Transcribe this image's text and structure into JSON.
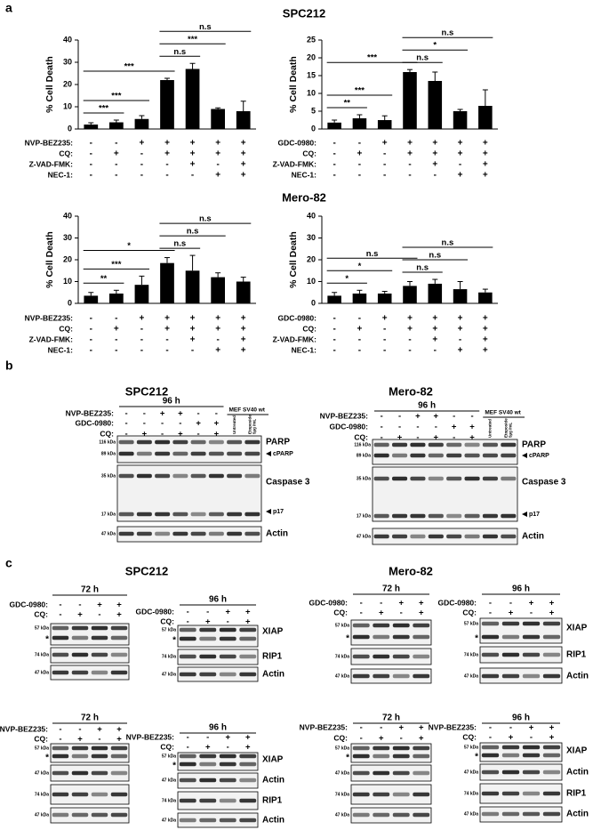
{
  "panels": [
    {
      "label": "a",
      "titles": [
        "SPC212",
        "Mero-82"
      ]
    },
    {
      "label": "b",
      "titles": [
        "SPC212",
        "Mero-82"
      ]
    },
    {
      "label": "c",
      "titles": [
        "SPC212",
        "Mero-82"
      ]
    }
  ],
  "chart_data": [
    {
      "type": "bar",
      "ylabel": "% Cell Death",
      "color": "#000000",
      "values": [
        2,
        3,
        4.5,
        22,
        27,
        9,
        8
      ],
      "errors": [
        0.8,
        1,
        1.5,
        0.8,
        2.5,
        0.5,
        4.5
      ],
      "ylim": [
        0,
        40
      ],
      "yticks": [
        0,
        10,
        20,
        30,
        40
      ],
      "conditions": [
        {
          "name": "NVP-BEZ235:",
          "signs": [
            "-",
            "-",
            "+",
            "+",
            "+",
            "+",
            "+"
          ]
        },
        {
          "name": "CQ:",
          "signs": [
            "-",
            "+",
            "-",
            "+",
            "+",
            "+",
            "+"
          ]
        },
        {
          "name": "Z-VAD-FMK:",
          "signs": [
            "-",
            "-",
            "-",
            "-",
            "+",
            "-",
            "+"
          ]
        },
        {
          "name": "NEC-1:",
          "signs": [
            "-",
            "-",
            "-",
            "-",
            "-",
            "+",
            "+"
          ]
        }
      ],
      "comparisons": [
        {
          "bars": [
            0,
            1
          ],
          "label": "***"
        },
        {
          "bars": [
            0,
            2
          ],
          "label": "***"
        },
        {
          "bars": [
            0,
            3
          ],
          "label": "***"
        },
        {
          "bars": [
            3,
            4
          ],
          "label": "n.s"
        },
        {
          "bars": [
            3,
            5
          ],
          "label": "***"
        },
        {
          "bars": [
            3,
            6
          ],
          "label": "n.s"
        }
      ]
    },
    {
      "type": "bar",
      "ylabel": "% Cell Death",
      "color": "#000000",
      "values": [
        1.8,
        3,
        2.5,
        16,
        13.5,
        5,
        6.5
      ],
      "errors": [
        0.7,
        1,
        1.2,
        0.7,
        2.5,
        0.5,
        4.5
      ],
      "ylim": [
        0,
        25
      ],
      "yticks": [
        0,
        5,
        10,
        15,
        20,
        25
      ],
      "conditions": [
        {
          "name": "GDC-0980:",
          "signs": [
            "-",
            "-",
            "+",
            "+",
            "+",
            "+",
            "+"
          ]
        },
        {
          "name": "CQ:",
          "signs": [
            "-",
            "+",
            "-",
            "+",
            "+",
            "+",
            "+"
          ]
        },
        {
          "name": "Z-VAD-FMK:",
          "signs": [
            "-",
            "-",
            "-",
            "-",
            "+",
            "-",
            "+"
          ]
        },
        {
          "name": "NEC-1:",
          "signs": [
            "-",
            "-",
            "-",
            "-",
            "-",
            "+",
            "+"
          ]
        }
      ],
      "comparisons": [
        {
          "bars": [
            0,
            1
          ],
          "label": "**"
        },
        {
          "bars": [
            0,
            2
          ],
          "label": "***"
        },
        {
          "bars": [
            0,
            3
          ],
          "label": "***"
        },
        {
          "bars": [
            3,
            4
          ],
          "label": "n.s"
        },
        {
          "bars": [
            3,
            5
          ],
          "label": "*"
        },
        {
          "bars": [
            3,
            6
          ],
          "label": "n.s"
        }
      ]
    },
    {
      "type": "bar",
      "ylabel": "% Cell Death",
      "color": "#000000",
      "values": [
        3.5,
        4.5,
        8.5,
        18.5,
        15,
        12,
        10
      ],
      "errors": [
        1.5,
        1.5,
        4,
        2.5,
        7,
        2,
        2
      ],
      "ylim": [
        0,
        40
      ],
      "yticks": [
        0,
        10,
        20,
        30,
        40
      ],
      "conditions": [
        {
          "name": "NVP-BEZ235:",
          "signs": [
            "-",
            "-",
            "+",
            "+",
            "+",
            "+",
            "+"
          ]
        },
        {
          "name": "CQ:",
          "signs": [
            "-",
            "+",
            "-",
            "+",
            "+",
            "+",
            "+"
          ]
        },
        {
          "name": "Z-VAD-FMK:",
          "signs": [
            "-",
            "-",
            "-",
            "-",
            "+",
            "-",
            "+"
          ]
        },
        {
          "name": "NEC-1:",
          "signs": [
            "-",
            "-",
            "-",
            "-",
            "-",
            "+",
            "+"
          ]
        }
      ],
      "comparisons": [
        {
          "bars": [
            0,
            1
          ],
          "label": "**"
        },
        {
          "bars": [
            0,
            2
          ],
          "label": "***"
        },
        {
          "bars": [
            0,
            3
          ],
          "label": "*"
        },
        {
          "bars": [
            3,
            4
          ],
          "label": "n.s"
        },
        {
          "bars": [
            3,
            5
          ],
          "label": "n.s"
        },
        {
          "bars": [
            3,
            6
          ],
          "label": "n.s"
        }
      ]
    },
    {
      "type": "bar",
      "ylabel": "% Cell Death",
      "color": "#000000",
      "values": [
        3.5,
        4.5,
        4.5,
        8,
        9,
        6.5,
        5
      ],
      "errors": [
        1.5,
        1.5,
        1,
        2,
        2,
        3.5,
        1.5
      ],
      "ylim": [
        0,
        40
      ],
      "yticks": [
        0,
        10,
        20,
        30,
        40
      ],
      "conditions": [
        {
          "name": "GDC-0980:",
          "signs": [
            "-",
            "-",
            "+",
            "+",
            "+",
            "+",
            "+"
          ]
        },
        {
          "name": "CQ:",
          "signs": [
            "-",
            "+",
            "-",
            "+",
            "+",
            "+",
            "+"
          ]
        },
        {
          "name": "Z-VAD-FMK:",
          "signs": [
            "-",
            "-",
            "-",
            "-",
            "+",
            "-",
            "+"
          ]
        },
        {
          "name": "NEC-1:",
          "signs": [
            "-",
            "-",
            "-",
            "-",
            "-",
            "+",
            "+"
          ]
        }
      ],
      "comparisons": [
        {
          "bars": [
            0,
            1
          ],
          "label": "*"
        },
        {
          "bars": [
            0,
            2
          ],
          "label": "*"
        },
        {
          "bars": [
            0,
            3
          ],
          "label": "n.s"
        },
        {
          "bars": [
            3,
            4
          ],
          "label": "n.s"
        },
        {
          "bars": [
            3,
            5
          ],
          "label": "n.s"
        },
        {
          "bars": [
            3,
            6
          ],
          "label": "n.s"
        }
      ]
    }
  ],
  "blots": [
    {
      "time": "96 h",
      "conditions": [
        {
          "name": "NVP-BEZ235:",
          "signs": [
            "-",
            "-",
            "+",
            "+",
            "-",
            "-"
          ]
        },
        {
          "name": "GDC-0980:",
          "signs": [
            "-",
            "-",
            "-",
            "-",
            "+",
            "+"
          ]
        },
        {
          "name": "CQ:",
          "signs": [
            "-",
            "+",
            "-",
            "+",
            "-",
            "+"
          ]
        }
      ],
      "control_group": "MEF SV40 wt",
      "control_lanes": [
        [
          "Untreated"
        ],
        [
          "Etoposide",
          "5µg /mL"
        ]
      ],
      "boxes": [
        {
          "markers": [
            "116 kDa",
            "89 kDa"
          ],
          "labels": [
            "PARP",
            "cPARP"
          ]
        },
        {
          "markers": [
            "35 kDa",
            "17 kDa"
          ],
          "labels": [
            "Caspase 3",
            "p17"
          ]
        },
        {
          "markers": [
            "47 kDa"
          ],
          "labels": [
            "Actin"
          ]
        }
      ]
    },
    {
      "time": "96 h",
      "conditions": [
        {
          "name": "NVP-BEZ235:",
          "signs": [
            "-",
            "-",
            "+",
            "+",
            "-",
            "-"
          ]
        },
        {
          "name": "GDC-0980:",
          "signs": [
            "-",
            "-",
            "-",
            "-",
            "+",
            "+"
          ]
        },
        {
          "name": "CQ:",
          "signs": [
            "-",
            "+",
            "-",
            "+",
            "-",
            "+"
          ]
        }
      ],
      "control_group": "MEF SV40 wt",
      "control_lanes": [
        [
          "Untreated"
        ],
        [
          "Etoposide",
          "5µg /mL"
        ]
      ],
      "boxes": [
        {
          "markers": [
            "116 kDa",
            "89 kDa"
          ],
          "labels": [
            "PARP",
            "cPARP"
          ]
        },
        {
          "markers": [
            "35 kDa",
            "17 kDa"
          ],
          "labels": [
            "Caspase 3",
            "p17"
          ]
        },
        {
          "markers": [
            "47 kDa"
          ],
          "labels": [
            "Actin"
          ]
        }
      ]
    },
    {
      "time": "72 h",
      "conditions": [
        {
          "name": "GDC-0980:",
          "signs": [
            "-",
            "-",
            "+",
            "+"
          ]
        },
        {
          "name": "CQ:",
          "signs": [
            "-",
            "+",
            "-",
            "+"
          ]
        }
      ],
      "boxes": [
        {
          "markers": [
            "57 kDa",
            "*"
          ],
          "labels": []
        },
        {
          "markers": [
            "74 kDa"
          ],
          "labels": []
        },
        {
          "markers": [
            "47 kDa"
          ],
          "labels": []
        }
      ]
    },
    {
      "time": "96 h",
      "conditions": [
        {
          "name": "GDC-0980:",
          "signs": [
            "-",
            "-",
            "+",
            "+"
          ]
        },
        {
          "name": "CQ:",
          "signs": [
            "-",
            "+",
            "-",
            "+"
          ]
        }
      ],
      "boxes": [
        {
          "markers": [
            "57 kDa",
            "*"
          ],
          "labels": [
            "XIAP"
          ]
        },
        {
          "markers": [
            "74 kDa"
          ],
          "labels": [
            "RIP1"
          ]
        },
        {
          "markers": [
            "47 kDa"
          ],
          "labels": [
            "Actin"
          ]
        }
      ]
    },
    {
      "time": "72 h",
      "conditions": [
        {
          "name": "GDC-0980:",
          "signs": [
            "-",
            "-",
            "+",
            "+"
          ]
        },
        {
          "name": "CQ:",
          "signs": [
            "-",
            "+",
            "-",
            "+"
          ]
        }
      ],
      "boxes": [
        {
          "markers": [
            "57 kDa",
            "*"
          ],
          "labels": []
        },
        {
          "markers": [
            "74 kDa"
          ],
          "labels": []
        },
        {
          "markers": [
            "47 kDa"
          ],
          "labels": []
        }
      ]
    },
    {
      "time": "96 h",
      "conditions": [
        {
          "name": "GDC-0980:",
          "signs": [
            "-",
            "-",
            "+",
            "+"
          ]
        },
        {
          "name": "CQ:",
          "signs": [
            "-",
            "+",
            "-",
            "+"
          ]
        }
      ],
      "boxes": [
        {
          "markers": [
            "57 kDa",
            "*"
          ],
          "labels": [
            "XIAP"
          ]
        },
        {
          "markers": [
            "74 kDa"
          ],
          "labels": [
            "RIP1"
          ]
        },
        {
          "markers": [
            "47 kDa"
          ],
          "labels": [
            "Actin"
          ]
        }
      ]
    },
    {
      "time": "72 h",
      "conditions": [
        {
          "name": "NVP-BEZ235:",
          "signs": [
            "-",
            "-",
            "+",
            "+"
          ]
        },
        {
          "name": "CQ:",
          "signs": [
            "-",
            "+",
            "-",
            "+"
          ]
        }
      ],
      "boxes": [
        {
          "markers": [
            "57 kDa",
            "*"
          ],
          "labels": []
        },
        {
          "markers": [
            "47 kDa"
          ],
          "labels": []
        },
        {
          "markers": [
            "74 kDa"
          ],
          "labels": []
        },
        {
          "markers": [
            "47 kDa"
          ],
          "labels": []
        }
      ]
    },
    {
      "time": "96 h",
      "conditions": [
        {
          "name": "NVP-BEZ235:",
          "signs": [
            "-",
            "-",
            "+",
            "+"
          ]
        },
        {
          "name": "CQ:",
          "signs": [
            "-",
            "+",
            "-",
            "+"
          ]
        }
      ],
      "boxes": [
        {
          "markers": [
            "57 kDa",
            "*"
          ],
          "labels": [
            "XIAP"
          ]
        },
        {
          "markers": [
            "47 kDa"
          ],
          "labels": [
            "Actin"
          ]
        },
        {
          "markers": [
            "74 kDa"
          ],
          "labels": [
            "RIP1"
          ]
        },
        {
          "markers": [
            "47 kDa"
          ],
          "labels": [
            "Actin"
          ]
        }
      ]
    },
    {
      "time": "72 h",
      "conditions": [
        {
          "name": "NVP-BEZ235:",
          "signs": [
            "-",
            "-",
            "+",
            "+"
          ]
        },
        {
          "name": "CQ:",
          "signs": [
            "-",
            "+",
            "-",
            "+"
          ]
        }
      ],
      "boxes": [
        {
          "markers": [
            "57 kDa",
            "*"
          ],
          "labels": []
        },
        {
          "markers": [
            "47 kDa"
          ],
          "labels": []
        },
        {
          "markers": [
            "74 kDa"
          ],
          "labels": []
        },
        {
          "markers": [
            "47 kDa"
          ],
          "labels": []
        }
      ]
    },
    {
      "time": "96 h",
      "conditions": [
        {
          "name": "NVP-BEZ235:",
          "signs": [
            "-",
            "-",
            "+",
            "+"
          ]
        },
        {
          "name": "CQ:",
          "signs": [
            "-",
            "+",
            "-",
            "+"
          ]
        }
      ],
      "boxes": [
        {
          "markers": [
            "57 kDa",
            "*"
          ],
          "labels": [
            "XIAP"
          ]
        },
        {
          "markers": [
            "47 kDa"
          ],
          "labels": [
            "Actin"
          ]
        },
        {
          "markers": [
            "74 kDa"
          ],
          "labels": [
            "RIP1"
          ]
        },
        {
          "markers": [
            "47 kDa"
          ],
          "labels": [
            "Actin"
          ]
        }
      ]
    }
  ]
}
